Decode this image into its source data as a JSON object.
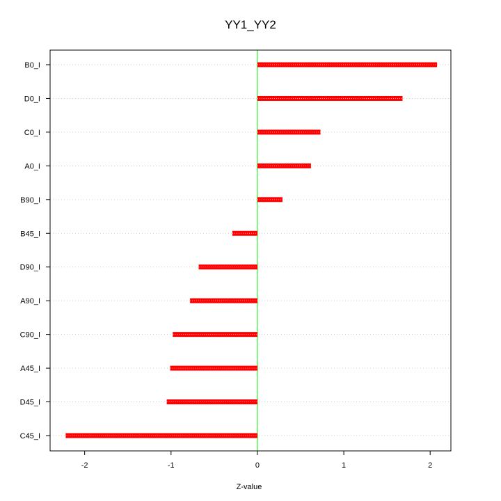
{
  "chart_data": {
    "type": "bar",
    "orientation": "horizontal",
    "title": "YY1_YY2",
    "xlabel": "Z-value",
    "ylabel": "",
    "categories": [
      "B0_I",
      "D0_I",
      "C0_I",
      "A0_I",
      "B90_I",
      "B45_I",
      "D90_I",
      "A90_I",
      "C90_I",
      "A45_I",
      "D45_I",
      "C45_I"
    ],
    "values": [
      2.08,
      1.68,
      0.73,
      0.62,
      0.29,
      -0.29,
      -0.68,
      -0.78,
      -0.98,
      -1.01,
      -1.05,
      -2.22
    ],
    "xlim": [
      -2.4,
      2.24
    ],
    "xticks": [
      -2,
      -1,
      0,
      1,
      2
    ],
    "xtick_labels": [
      "-2",
      "-1",
      "0",
      "1",
      "2"
    ],
    "grid": "horizontal dotted",
    "reference_line": 0,
    "colors": {
      "bar": "#ff0000",
      "reference_line": "#00ee00",
      "grid": "#cccccc",
      "frame": "#000000"
    }
  }
}
